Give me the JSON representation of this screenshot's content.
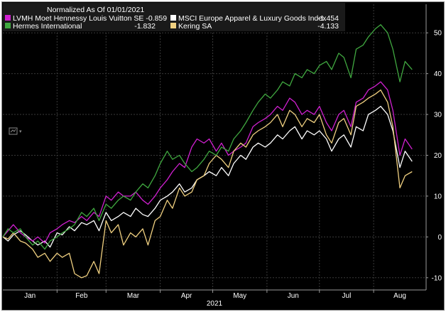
{
  "chart_data": {
    "type": "line",
    "legend_title": "Normalized As Of 01/01/2021",
    "x_month_labels": [
      "Jan",
      "Feb",
      "Mar",
      "Apr",
      "May",
      "Jun",
      "Jul",
      "Aug"
    ],
    "x_year_label": "2021",
    "x_period": {
      "start": "2021-01-01",
      "end": "2021-08-31"
    },
    "ylim": [
      -13,
      57
    ],
    "y_ticks": [
      -10,
      0,
      10,
      20,
      30,
      40,
      50
    ],
    "grid": true,
    "legend_position": "top-left",
    "series": [
      {
        "name": "MSCI Europe Apparel & Luxury Goods Index",
        "legend_value": "-1.454",
        "color": "#ffffff",
        "points": [
          [
            "2021-01-01",
            0
          ],
          [
            "2021-01-04",
            -1
          ],
          [
            "2021-01-07",
            0.5
          ],
          [
            "2021-01-11",
            1.5
          ],
          [
            "2021-01-14",
            0.5
          ],
          [
            "2021-01-18",
            -1
          ],
          [
            "2021-01-21",
            -2
          ],
          [
            "2021-01-25",
            -1
          ],
          [
            "2021-01-28",
            -2.5
          ],
          [
            "2021-02-01",
            1
          ],
          [
            "2021-02-04",
            0.5
          ],
          [
            "2021-02-08",
            2.5
          ],
          [
            "2021-02-11",
            1.5
          ],
          [
            "2021-02-15",
            3.5
          ],
          [
            "2021-02-18",
            3
          ],
          [
            "2021-02-22",
            4
          ],
          [
            "2021-02-25",
            1.5
          ],
          [
            "2021-03-01",
            6
          ],
          [
            "2021-03-04",
            4
          ],
          [
            "2021-03-08",
            5
          ],
          [
            "2021-03-11",
            6
          ],
          [
            "2021-03-15",
            5
          ],
          [
            "2021-03-18",
            7
          ],
          [
            "2021-03-22",
            5.5
          ],
          [
            "2021-03-25",
            5
          ],
          [
            "2021-03-29",
            7
          ],
          [
            "2021-04-01",
            9
          ],
          [
            "2021-04-05",
            10
          ],
          [
            "2021-04-08",
            11
          ],
          [
            "2021-04-12",
            13
          ],
          [
            "2021-04-15",
            11
          ],
          [
            "2021-04-19",
            12
          ],
          [
            "2021-04-22",
            14
          ],
          [
            "2021-04-26",
            15
          ],
          [
            "2021-04-29",
            16
          ],
          [
            "2021-05-03",
            15
          ],
          [
            "2021-05-06",
            17
          ],
          [
            "2021-05-10",
            15
          ],
          [
            "2021-05-13",
            18
          ],
          [
            "2021-05-17",
            20
          ],
          [
            "2021-05-20",
            19
          ],
          [
            "2021-05-24",
            22
          ],
          [
            "2021-05-27",
            23
          ],
          [
            "2021-05-31",
            22
          ],
          [
            "2021-06-03",
            23
          ],
          [
            "2021-06-07",
            25
          ],
          [
            "2021-06-10",
            24
          ],
          [
            "2021-06-14",
            26
          ],
          [
            "2021-06-17",
            27
          ],
          [
            "2021-06-21",
            24
          ],
          [
            "2021-06-24",
            26
          ],
          [
            "2021-06-28",
            25
          ],
          [
            "2021-07-01",
            26
          ],
          [
            "2021-07-05",
            24
          ],
          [
            "2021-07-08",
            21
          ],
          [
            "2021-07-12",
            24
          ],
          [
            "2021-07-15",
            25
          ],
          [
            "2021-07-19",
            22
          ],
          [
            "2021-07-22",
            27
          ],
          [
            "2021-07-26",
            26
          ],
          [
            "2021-07-29",
            30
          ],
          [
            "2021-08-02",
            31
          ],
          [
            "2021-08-05",
            32
          ],
          [
            "2021-08-09",
            30
          ],
          [
            "2021-08-12",
            26
          ],
          [
            "2021-08-16",
            17
          ],
          [
            "2021-08-19",
            21
          ],
          [
            "2021-08-23",
            18.5
          ]
        ]
      },
      {
        "name": "LVMH Moet Hennessy Louis Vuitton SE",
        "legend_value": "-0.859",
        "color": "#d020d0",
        "points": [
          [
            "2021-01-01",
            0
          ],
          [
            "2021-01-04",
            1.5
          ],
          [
            "2021-01-07",
            3
          ],
          [
            "2021-01-11",
            1
          ],
          [
            "2021-01-14",
            0
          ],
          [
            "2021-01-18",
            -1
          ],
          [
            "2021-01-21",
            0
          ],
          [
            "2021-01-25",
            -1.5
          ],
          [
            "2021-01-28",
            1
          ],
          [
            "2021-02-01",
            2
          ],
          [
            "2021-02-04",
            3
          ],
          [
            "2021-02-08",
            4
          ],
          [
            "2021-02-11",
            3.5
          ],
          [
            "2021-02-15",
            5
          ],
          [
            "2021-02-18",
            4
          ],
          [
            "2021-02-22",
            6
          ],
          [
            "2021-02-25",
            5
          ],
          [
            "2021-03-01",
            10
          ],
          [
            "2021-03-04",
            9
          ],
          [
            "2021-03-08",
            11
          ],
          [
            "2021-03-11",
            10
          ],
          [
            "2021-03-15",
            10
          ],
          [
            "2021-03-18",
            11
          ],
          [
            "2021-03-22",
            9
          ],
          [
            "2021-03-25",
            8
          ],
          [
            "2021-03-29",
            10
          ],
          [
            "2021-04-01",
            12
          ],
          [
            "2021-04-05",
            14
          ],
          [
            "2021-04-08",
            16
          ],
          [
            "2021-04-12",
            18
          ],
          [
            "2021-04-15",
            17
          ],
          [
            "2021-04-19",
            22
          ],
          [
            "2021-04-22",
            24
          ],
          [
            "2021-04-26",
            23
          ],
          [
            "2021-04-29",
            24
          ],
          [
            "2021-05-03",
            21
          ],
          [
            "2021-05-06",
            23
          ],
          [
            "2021-05-10",
            20
          ],
          [
            "2021-05-13",
            21
          ],
          [
            "2021-05-17",
            22
          ],
          [
            "2021-05-20",
            23
          ],
          [
            "2021-05-24",
            27
          ],
          [
            "2021-05-27",
            28
          ],
          [
            "2021-05-31",
            29
          ],
          [
            "2021-06-03",
            30
          ],
          [
            "2021-06-07",
            32
          ],
          [
            "2021-06-10",
            31
          ],
          [
            "2021-06-14",
            34
          ],
          [
            "2021-06-17",
            33
          ],
          [
            "2021-06-21",
            30
          ],
          [
            "2021-06-24",
            31
          ],
          [
            "2021-06-28",
            30
          ],
          [
            "2021-07-01",
            32
          ],
          [
            "2021-07-05",
            28
          ],
          [
            "2021-07-08",
            26
          ],
          [
            "2021-07-12",
            30
          ],
          [
            "2021-07-15",
            31
          ],
          [
            "2021-07-19",
            27
          ],
          [
            "2021-07-22",
            33
          ],
          [
            "2021-07-26",
            34
          ],
          [
            "2021-07-29",
            36
          ],
          [
            "2021-08-02",
            37
          ],
          [
            "2021-08-05",
            38
          ],
          [
            "2021-08-09",
            36
          ],
          [
            "2021-08-12",
            31
          ],
          [
            "2021-08-16",
            20
          ],
          [
            "2021-08-19",
            24
          ],
          [
            "2021-08-23",
            21.5
          ]
        ]
      },
      {
        "name": "Kering SA",
        "legend_value": "-4.133",
        "color": "#f0d080",
        "points": [
          [
            "2021-01-01",
            0
          ],
          [
            "2021-01-04",
            -0.5
          ],
          [
            "2021-01-07",
            1
          ],
          [
            "2021-01-11",
            -1
          ],
          [
            "2021-01-14",
            -1.5
          ],
          [
            "2021-01-18",
            -3
          ],
          [
            "2021-01-21",
            -5
          ],
          [
            "2021-01-25",
            -4
          ],
          [
            "2021-01-28",
            -6
          ],
          [
            "2021-02-01",
            -4
          ],
          [
            "2021-02-04",
            -5
          ],
          [
            "2021-02-08",
            -4
          ],
          [
            "2021-02-11",
            -9
          ],
          [
            "2021-02-15",
            -10
          ],
          [
            "2021-02-18",
            -9.5
          ],
          [
            "2021-02-22",
            -6
          ],
          [
            "2021-02-25",
            -9
          ],
          [
            "2021-03-01",
            4
          ],
          [
            "2021-03-04",
            1
          ],
          [
            "2021-03-08",
            3
          ],
          [
            "2021-03-11",
            -2
          ],
          [
            "2021-03-15",
            1
          ],
          [
            "2021-03-18",
            0
          ],
          [
            "2021-03-22",
            2
          ],
          [
            "2021-03-25",
            -2
          ],
          [
            "2021-03-29",
            4
          ],
          [
            "2021-04-01",
            5
          ],
          [
            "2021-04-05",
            9
          ],
          [
            "2021-04-08",
            7
          ],
          [
            "2021-04-12",
            12
          ],
          [
            "2021-04-15",
            10
          ],
          [
            "2021-04-19",
            11
          ],
          [
            "2021-04-22",
            14
          ],
          [
            "2021-04-26",
            15
          ],
          [
            "2021-04-29",
            18
          ],
          [
            "2021-05-03",
            20
          ],
          [
            "2021-05-06",
            19
          ],
          [
            "2021-05-10",
            17
          ],
          [
            "2021-05-13",
            21
          ],
          [
            "2021-05-17",
            23
          ],
          [
            "2021-05-20",
            22
          ],
          [
            "2021-05-24",
            25
          ],
          [
            "2021-05-27",
            26
          ],
          [
            "2021-05-31",
            27
          ],
          [
            "2021-06-03",
            28
          ],
          [
            "2021-06-07",
            30
          ],
          [
            "2021-06-10",
            27
          ],
          [
            "2021-06-14",
            31
          ],
          [
            "2021-06-17",
            30
          ],
          [
            "2021-06-21",
            27
          ],
          [
            "2021-06-24",
            29
          ],
          [
            "2021-06-28",
            28
          ],
          [
            "2021-07-01",
            30
          ],
          [
            "2021-07-05",
            25
          ],
          [
            "2021-07-08",
            23
          ],
          [
            "2021-07-12",
            28
          ],
          [
            "2021-07-15",
            29
          ],
          [
            "2021-07-19",
            25
          ],
          [
            "2021-07-22",
            32
          ],
          [
            "2021-07-26",
            33
          ],
          [
            "2021-07-29",
            34
          ],
          [
            "2021-08-02",
            35
          ],
          [
            "2021-08-05",
            36
          ],
          [
            "2021-08-09",
            33
          ],
          [
            "2021-08-12",
            27
          ],
          [
            "2021-08-16",
            12
          ],
          [
            "2021-08-19",
            15
          ],
          [
            "2021-08-23",
            16
          ]
        ]
      },
      {
        "name": "Hermes International",
        "legend_value": "-1.832",
        "color": "#40a840",
        "points": [
          [
            "2021-01-01",
            0
          ],
          [
            "2021-01-04",
            2
          ],
          [
            "2021-01-07",
            1
          ],
          [
            "2021-01-11",
            2
          ],
          [
            "2021-01-14",
            0
          ],
          [
            "2021-01-18",
            -2
          ],
          [
            "2021-01-21",
            -1
          ],
          [
            "2021-01-25",
            -3
          ],
          [
            "2021-01-28",
            -1
          ],
          [
            "2021-02-01",
            0
          ],
          [
            "2021-02-04",
            1
          ],
          [
            "2021-02-08",
            2
          ],
          [
            "2021-02-11",
            3
          ],
          [
            "2021-02-15",
            6
          ],
          [
            "2021-02-18",
            5
          ],
          [
            "2021-02-22",
            7
          ],
          [
            "2021-02-25",
            4
          ],
          [
            "2021-03-01",
            8
          ],
          [
            "2021-03-04",
            7
          ],
          [
            "2021-03-08",
            9
          ],
          [
            "2021-03-11",
            10
          ],
          [
            "2021-03-15",
            9
          ],
          [
            "2021-03-18",
            11
          ],
          [
            "2021-03-22",
            13
          ],
          [
            "2021-03-25",
            12
          ],
          [
            "2021-03-29",
            15
          ],
          [
            "2021-04-01",
            18
          ],
          [
            "2021-04-05",
            21
          ],
          [
            "2021-04-08",
            19
          ],
          [
            "2021-04-12",
            20
          ],
          [
            "2021-04-15",
            18
          ],
          [
            "2021-04-19",
            16
          ],
          [
            "2021-04-22",
            17
          ],
          [
            "2021-04-26",
            19
          ],
          [
            "2021-04-29",
            21
          ],
          [
            "2021-05-03",
            20
          ],
          [
            "2021-05-06",
            22
          ],
          [
            "2021-05-10",
            21
          ],
          [
            "2021-05-13",
            24
          ],
          [
            "2021-05-17",
            26
          ],
          [
            "2021-05-20",
            28
          ],
          [
            "2021-05-24",
            31
          ],
          [
            "2021-05-27",
            33
          ],
          [
            "2021-05-31",
            35
          ],
          [
            "2021-06-03",
            34
          ],
          [
            "2021-06-07",
            36
          ],
          [
            "2021-06-10",
            38
          ],
          [
            "2021-06-14",
            37
          ],
          [
            "2021-06-17",
            40
          ],
          [
            "2021-06-21",
            39
          ],
          [
            "2021-06-24",
            41
          ],
          [
            "2021-06-28",
            40
          ],
          [
            "2021-07-01",
            42
          ],
          [
            "2021-07-05",
            43
          ],
          [
            "2021-07-08",
            41
          ],
          [
            "2021-07-12",
            45
          ],
          [
            "2021-07-15",
            44
          ],
          [
            "2021-07-19",
            39
          ],
          [
            "2021-07-22",
            46
          ],
          [
            "2021-07-26",
            47
          ],
          [
            "2021-07-29",
            49
          ],
          [
            "2021-08-02",
            51
          ],
          [
            "2021-08-05",
            52
          ],
          [
            "2021-08-09",
            50
          ],
          [
            "2021-08-12",
            46
          ],
          [
            "2021-08-16",
            38
          ],
          [
            "2021-08-19",
            43
          ],
          [
            "2021-08-23",
            41
          ]
        ]
      }
    ]
  }
}
